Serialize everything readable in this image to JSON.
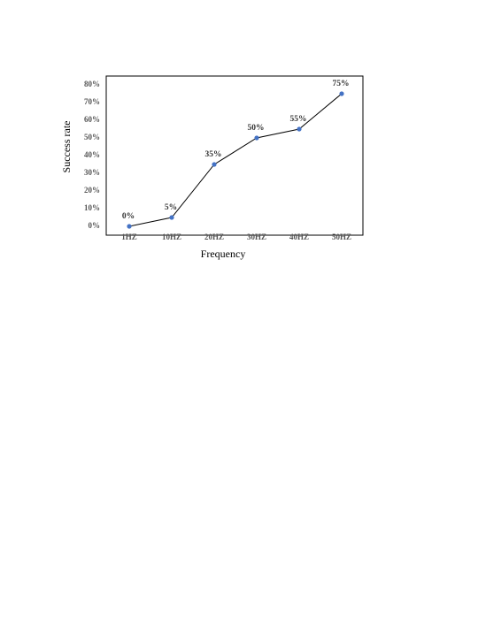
{
  "chart_data": {
    "type": "line",
    "x_label": "Frequency",
    "y_label": "Success rate",
    "categories": [
      "1HZ",
      "10HZ",
      "20HZ",
      "30HZ",
      "40HZ",
      "50HZ"
    ],
    "series": [
      {
        "name": "Success rate",
        "color": "#4472c4",
        "line_color": "#000000",
        "values": [
          0,
          5,
          35,
          50,
          55,
          75
        ],
        "value_labels": [
          "0%",
          "5%",
          "35%",
          "50%",
          "55%",
          "75%"
        ]
      }
    ],
    "ylim": [
      -5,
      85
    ],
    "yticks": [
      {
        "value": 0,
        "label": "0%"
      },
      {
        "value": 10,
        "label": "10%"
      },
      {
        "value": 20,
        "label": "20%"
      },
      {
        "value": 30,
        "label": "30%"
      },
      {
        "value": 40,
        "label": "40%"
      },
      {
        "value": 50,
        "label": "50%"
      },
      {
        "value": 60,
        "label": "60%"
      },
      {
        "value": 70,
        "label": "70%"
      },
      {
        "value": 80,
        "label": "80%"
      }
    ],
    "grid": false
  }
}
